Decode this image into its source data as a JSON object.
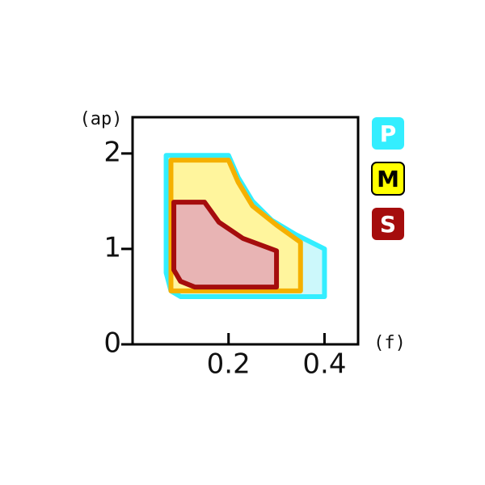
{
  "chart_data": {
    "type": "region",
    "x_label": "(f)",
    "y_label": "(ap)",
    "xlim": [
      0,
      0.47
    ],
    "ylim": [
      0,
      2.38
    ],
    "xticks": [
      0.2,
      0.4
    ],
    "yticks": [
      0,
      1,
      2
    ],
    "series": [
      {
        "name": "P",
        "color": "#33eeff",
        "fill": "#ccf8fb",
        "badge_color": "#33eeff",
        "text_color": "#ffffff",
        "x": [
          0.07,
          0.2,
          0.22,
          0.25,
          0.29,
          0.34,
          0.4,
          0.4,
          0.1,
          0.08,
          0.07
        ],
        "values": [
          1.98,
          1.98,
          1.75,
          1.5,
          1.3,
          1.15,
          1.0,
          0.5,
          0.5,
          0.56,
          0.75
        ]
      },
      {
        "name": "M",
        "color": "#f5b000",
        "fill": "#fff59d",
        "badge_color": "#ffff00",
        "text_color": "#000000",
        "x": [
          0.08,
          0.2,
          0.22,
          0.25,
          0.3,
          0.35,
          0.35,
          0.08
        ],
        "values": [
          1.93,
          1.93,
          1.7,
          1.45,
          1.25,
          1.07,
          0.56,
          0.56
        ]
      },
      {
        "name": "S",
        "color": "#a50d0d",
        "fill": "#e8b4b4",
        "badge_color": "#a50d0d",
        "text_color": "#ffffff",
        "x": [
          0.086,
          0.15,
          0.18,
          0.23,
          0.3,
          0.3,
          0.13,
          0.1,
          0.086
        ],
        "values": [
          1.49,
          1.49,
          1.28,
          1.11,
          0.98,
          0.6,
          0.6,
          0.66,
          0.78
        ]
      }
    ]
  }
}
